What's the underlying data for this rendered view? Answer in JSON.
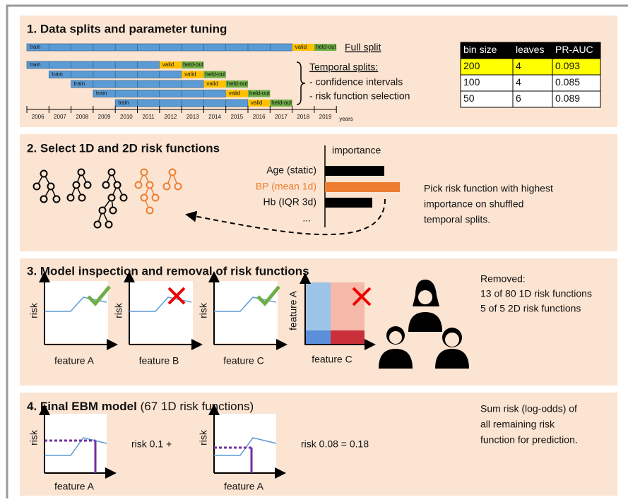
{
  "panel1": {
    "title": "1. Data splits and parameter tuning",
    "full_split": "Full split",
    "temporal_title": "Temporal splits:",
    "temporal_items": [
      "- confidence intervals",
      "- risk function selection"
    ],
    "bar_labels": {
      "train": "train",
      "valid": "valid",
      "heldout": "held-out"
    },
    "years": [
      2006,
      2007,
      2008,
      2009,
      2010,
      2011,
      2012,
      2013,
      2014,
      2015,
      2016,
      2017,
      2018,
      2019
    ],
    "years_unit": "years",
    "table": {
      "header": [
        "bin size",
        "leaves",
        "PR-AUC"
      ],
      "rows": [
        [
          "200",
          "4",
          "0.093"
        ],
        [
          "100",
          "4",
          "0.085"
        ],
        [
          "50",
          "6",
          "0.089"
        ]
      ]
    }
  },
  "panel2": {
    "title": "2. Select 1D and 2D risk functions",
    "importance": "importance",
    "features": [
      "Age (static)",
      "BP (mean 1d)",
      "Hb (IQR 3d)",
      "..."
    ],
    "text_lines": [
      "Pick risk function with highest",
      "importance on shuffled",
      "temporal splits."
    ]
  },
  "panel3": {
    "title": "3. Model inspection and removal of risk functions",
    "y_label": "risk",
    "x_labels": [
      "feature A",
      "feature B",
      "feature C"
    ],
    "heatmap_y": "feature A",
    "heatmap_x": "feature C",
    "removed_lines": [
      "Removed:",
      "13 of 80 1D risk functions",
      "5 of 5 2D risk functions"
    ]
  },
  "panel4": {
    "title": "4. Final EBM model",
    "subtitle": " (67 1D risk functions)",
    "y_label": "risk",
    "x_label": "feature A",
    "term1": "risk 0.1 +",
    "term2": "risk 0.08 = 0.18",
    "text_lines": [
      "Sum risk (log-odds) of",
      "all remaining risk",
      "function for prediction."
    ]
  }
}
